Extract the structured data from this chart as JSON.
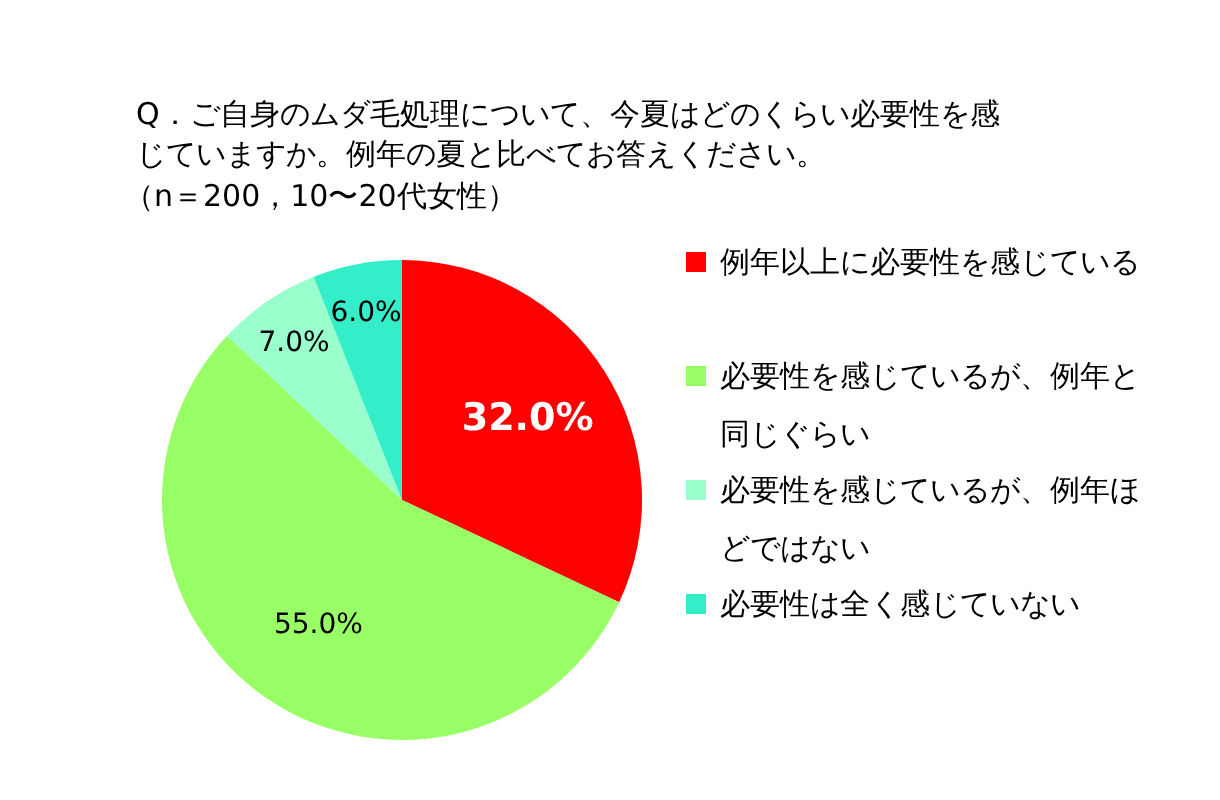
{
  "chart_data": {
    "type": "pie",
    "title": "Q．ご自身のムダ毛処理について、今夏はどのくらい必要性を感じていますか。例年の夏と比べてお答えください。",
    "subtitle": "（n＝200，10〜20代女性）",
    "categories": [
      "例年以上に必要性を感じている",
      "必要性を感じているが、例年と同じぐらい",
      "必要性を感じているが、例年ほどではない",
      "必要性は全く感じていない"
    ],
    "values": [
      32.0,
      55.0,
      7.0,
      6.0
    ],
    "value_labels": [
      "32.0%",
      "55.0%",
      "7.0%",
      "6.0%"
    ],
    "colors": [
      "#ff0000",
      "#99ff66",
      "#99ffcc",
      "#33eec8"
    ],
    "legend": "right"
  }
}
